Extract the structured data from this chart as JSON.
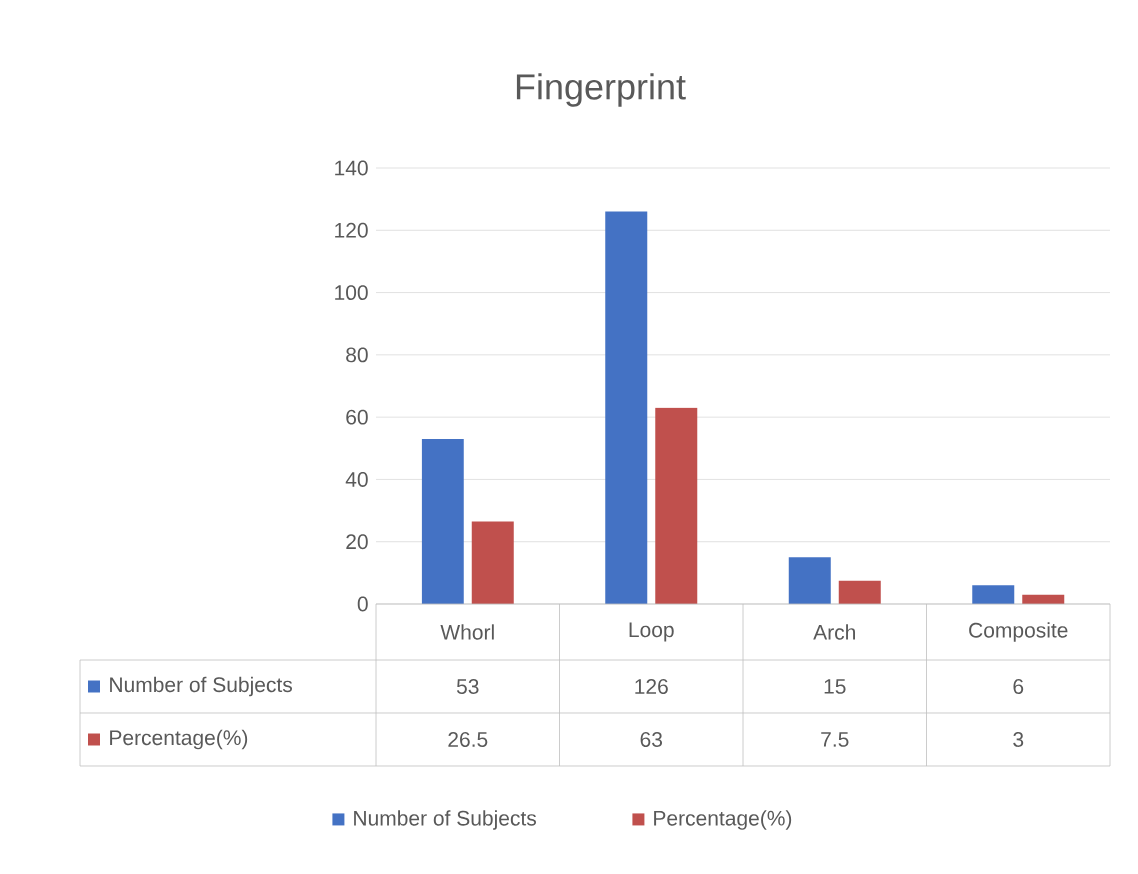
{
  "chart_data": {
    "type": "bar",
    "title": "Fingerprint",
    "categories": [
      "Whorl",
      "Loop",
      "Arch",
      "Composite"
    ],
    "series": [
      {
        "name": "Number of Subjects",
        "color": "#4472c4",
        "values": [
          53,
          126,
          15,
          6
        ]
      },
      {
        "name": "Percentage(%)",
        "color": "#c0504d",
        "values": [
          26.5,
          63,
          7.5,
          3
        ]
      }
    ],
    "ylim": [
      0,
      140
    ],
    "yticks": [
      0,
      20,
      40,
      60,
      80,
      100,
      120,
      140
    ],
    "grid": "y",
    "legend": "bottom",
    "data_labels": true
  }
}
